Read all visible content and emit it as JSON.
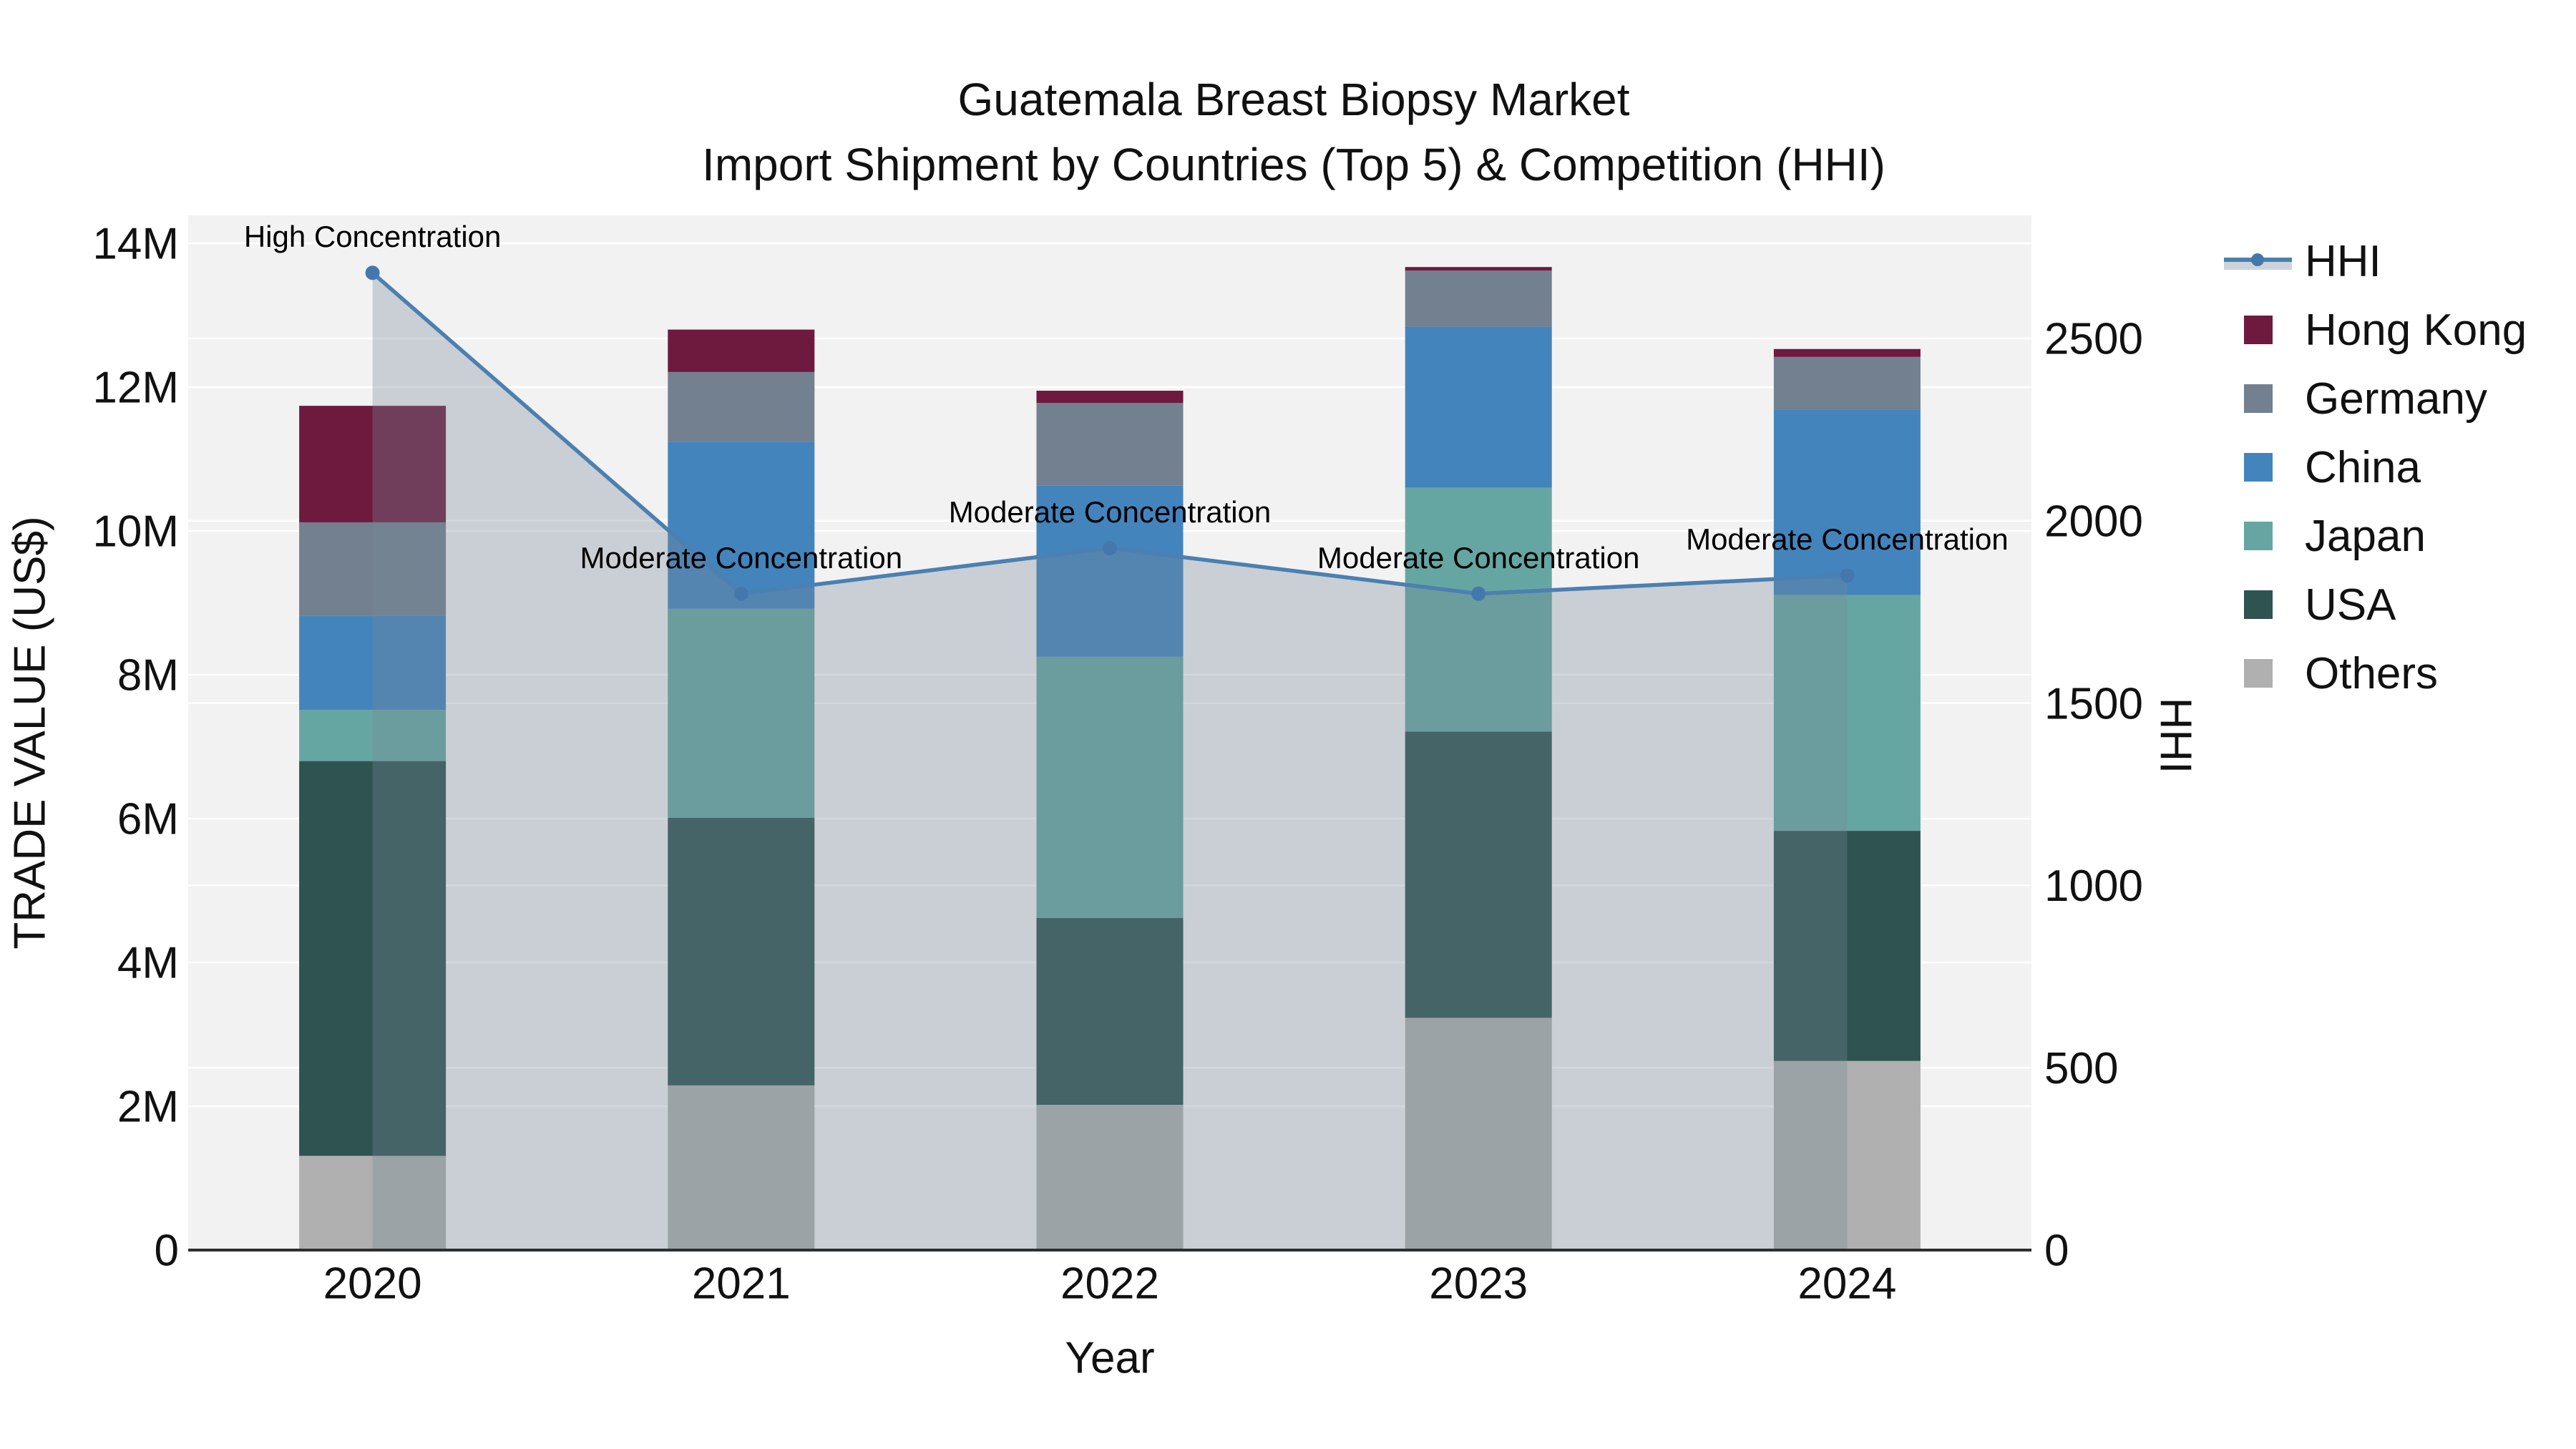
{
  "title": {
    "line1": "Guatemala Breast Biopsy Market",
    "line2": "Import Shipment by Countries (Top 5) & Competition (HHI)"
  },
  "axes": {
    "left": {
      "title": "TRADE VALUE (US$)",
      "tick_labels": [
        "0",
        "2M",
        "4M",
        "6M",
        "8M",
        "10M",
        "12M",
        "14M"
      ],
      "tick_values": [
        0,
        2,
        4,
        6,
        8,
        10,
        12,
        14
      ]
    },
    "right": {
      "title": "HHI",
      "tick_labels": [
        "0",
        "500",
        "1000",
        "1500",
        "2000",
        "2500"
      ],
      "tick_values": [
        0,
        500,
        1000,
        1500,
        2000,
        2500
      ]
    },
    "x": {
      "title": "Year",
      "tick_labels": [
        "2020",
        "2021",
        "2022",
        "2023",
        "2024"
      ]
    }
  },
  "legend": {
    "items": [
      {
        "label": "HHI",
        "type": "line",
        "color": "#4B80B0"
      },
      {
        "label": "Hong Kong",
        "type": "swatch",
        "color": "#6E1A3E"
      },
      {
        "label": "Germany",
        "type": "swatch",
        "color": "#72808F"
      },
      {
        "label": "China",
        "type": "swatch",
        "color": "#4484BC"
      },
      {
        "label": "Japan",
        "type": "swatch",
        "color": "#66A6A2"
      },
      {
        "label": "USA",
        "type": "swatch",
        "color": "#2E5350"
      },
      {
        "label": "Others",
        "type": "swatch",
        "color": "#AFB0AF"
      }
    ]
  },
  "colors": {
    "plot_bg": "#F2F2F2",
    "grid": "#FFFFFF",
    "axis_line": "#2F2F2F",
    "text": "#111111",
    "hhi_line": "#4B80B0",
    "hhi_marker": "#4478AC",
    "hhi_fill": "rgba(119,136,153,0.33)",
    "legend_band": "#CDD3DB"
  },
  "chart_data": {
    "type": "bar",
    "subtype": "stacked bars (left axis, trade value) with HHI line + area overlay (right axis)",
    "title": "Guatemala Breast Biopsy Market — Import Shipment by Countries (Top 5) & Competition (HHI)",
    "xlabel": "Year",
    "ylabel": "TRADE VALUE (US$)",
    "ylabel_right": "HHI",
    "categories": [
      "2020",
      "2021",
      "2022",
      "2023",
      "2024"
    ],
    "bar_unit": "million US$",
    "stack_order_note": "series listed bottom-to-top of stack",
    "series": [
      {
        "name": "Others",
        "color": "#AFB0AF",
        "values": [
          1.31,
          2.29,
          2.02,
          3.23,
          2.63
        ]
      },
      {
        "name": "USA",
        "color": "#2E5350",
        "values": [
          5.49,
          3.72,
          2.6,
          3.98,
          3.2
        ]
      },
      {
        "name": "Japan",
        "color": "#66A6A2",
        "values": [
          0.71,
          2.91,
          3.63,
          3.39,
          3.28
        ]
      },
      {
        "name": "China",
        "color": "#4484BC",
        "values": [
          1.31,
          2.32,
          2.38,
          2.24,
          2.58
        ]
      },
      {
        "name": "Germany",
        "color": "#72808F",
        "values": [
          1.3,
          0.97,
          1.15,
          0.78,
          0.73
        ]
      },
      {
        "name": "Hong Kong",
        "color": "#6E1A3E",
        "values": [
          1.62,
          0.59,
          0.17,
          0.05,
          0.11
        ]
      }
    ],
    "bar_totals": [
      11.74,
      12.8,
      11.95,
      13.67,
      12.53
    ],
    "line_series": {
      "name": "HHI",
      "axis": "right",
      "area_fill": true,
      "values": [
        2680,
        1800,
        1925,
        1800,
        1850
      ]
    },
    "ylim_left": [
      0,
      14.4
    ],
    "ylim_right": [
      0,
      2840
    ],
    "grid": true,
    "legend_position": "right",
    "annotations": [
      {
        "x": "2020",
        "text": "High Concentration"
      },
      {
        "x": "2021",
        "text": "Moderate Concentration"
      },
      {
        "x": "2022",
        "text": "Moderate Concentration"
      },
      {
        "x": "2023",
        "text": "Moderate Concentration"
      },
      {
        "x": "2024",
        "text": "Moderate Concentration"
      }
    ]
  }
}
